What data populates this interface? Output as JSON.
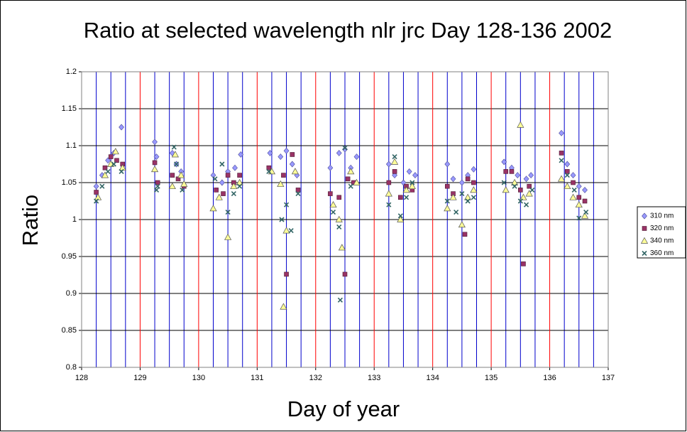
{
  "chart_data": {
    "type": "scatter",
    "title": "Ratio at selected wavelength nlr jrc Day 128-136 2002",
    "x_label": "Day of year",
    "y_label": "Ratio",
    "xlim": [
      128,
      137
    ],
    "xticks": [
      128,
      129,
      130,
      131,
      132,
      133,
      134,
      135,
      136,
      137
    ],
    "xminor": [
      128.25,
      128.5,
      128.75,
      129.25,
      129.5,
      129.75,
      130.25,
      130.5,
      130.75,
      131.25,
      131.5,
      131.75,
      132.25,
      132.5,
      132.75,
      133.25,
      133.5,
      133.75,
      134.25,
      134.5,
      134.75,
      135.25,
      135.5,
      135.75,
      136.25,
      136.5,
      136.75
    ],
    "ylim": [
      0.8,
      1.2
    ],
    "yticks": [
      0.8,
      0.85,
      0.9,
      0.95,
      1,
      1.05,
      1.1,
      1.15,
      1.2
    ],
    "grid": true,
    "grid_color": "#000000",
    "xmajor_color": "#ff0000",
    "xminor_color": "#0000cc",
    "legend": "right",
    "series": [
      {
        "name": "310 nm",
        "color": "#9999ff",
        "marker": "diamond",
        "x": [
          128.25,
          128.35,
          128.45,
          128.55,
          128.68,
          129.25,
          129.28,
          129.55,
          129.62,
          129.7,
          130.25,
          130.4,
          130.5,
          130.62,
          130.72,
          131.22,
          131.4,
          131.5,
          131.6,
          131.68,
          132.25,
          132.4,
          132.5,
          132.6,
          132.7,
          133.25,
          133.35,
          133.5,
          133.6,
          133.7,
          134.25,
          134.35,
          134.5,
          134.6,
          134.7,
          135.22,
          135.35,
          135.45,
          135.6,
          135.68,
          136.2,
          136.3,
          136.4,
          136.5,
          136.6
        ],
        "values": [
          1.045,
          1.06,
          1.08,
          1.09,
          1.125,
          1.105,
          1.085,
          1.09,
          1.075,
          1.065,
          1.06,
          1.05,
          1.065,
          1.07,
          1.088,
          1.09,
          1.085,
          1.093,
          1.075,
          1.06,
          1.07,
          1.09,
          1.095,
          1.07,
          1.085,
          1.075,
          1.06,
          1.05,
          1.065,
          1.06,
          1.075,
          1.055,
          1.05,
          1.06,
          1.068,
          1.078,
          1.07,
          1.06,
          1.055,
          1.06,
          1.117,
          1.075,
          1.06,
          1.045,
          1.04
        ]
      },
      {
        "name": "320 nm",
        "color": "#993366",
        "marker": "square",
        "x": [
          128.25,
          128.4,
          128.5,
          128.6,
          128.7,
          129.25,
          129.3,
          129.55,
          129.65,
          129.75,
          130.3,
          130.42,
          130.5,
          130.6,
          130.7,
          131.2,
          131.45,
          131.5,
          131.6,
          131.7,
          132.25,
          132.4,
          132.5,
          132.55,
          132.65,
          133.25,
          133.35,
          133.45,
          133.55,
          133.65,
          134.25,
          134.35,
          134.55,
          134.6,
          134.7,
          135.25,
          135.35,
          135.5,
          135.55,
          135.65,
          136.2,
          136.3,
          136.4,
          136.5,
          136.6
        ],
        "values": [
          1.037,
          1.07,
          1.085,
          1.08,
          1.075,
          1.077,
          1.05,
          1.06,
          1.055,
          1.045,
          1.04,
          1.035,
          1.06,
          1.05,
          1.06,
          1.07,
          1.06,
          0.926,
          1.088,
          1.04,
          1.035,
          1.03,
          0.926,
          1.055,
          1.05,
          1.05,
          1.065,
          1.03,
          1.045,
          1.04,
          1.045,
          1.035,
          0.98,
          1.055,
          1.05,
          1.065,
          1.065,
          1.04,
          0.94,
          1.045,
          1.09,
          1.065,
          1.05,
          1.03,
          1.025
        ]
      },
      {
        "name": "340 nm",
        "color": "#ffff99",
        "marker": "triangle",
        "x": [
          128.28,
          128.4,
          128.5,
          128.58,
          128.7,
          129.25,
          129.55,
          129.6,
          129.7,
          129.75,
          130.25,
          130.35,
          130.5,
          130.6,
          130.7,
          131.25,
          131.4,
          131.45,
          131.5,
          131.65,
          132.3,
          132.4,
          132.45,
          132.6,
          132.7,
          133.25,
          133.35,
          133.45,
          133.55,
          133.65,
          134.25,
          134.35,
          134.5,
          134.6,
          134.7,
          135.25,
          135.4,
          135.5,
          135.55,
          135.65,
          136.2,
          136.3,
          136.4,
          136.5,
          136.6
        ],
        "values": [
          1.03,
          1.06,
          1.075,
          1.092,
          1.07,
          1.068,
          1.045,
          1.088,
          1.06,
          1.048,
          1.015,
          1.03,
          0.976,
          1.045,
          1.05,
          1.065,
          1.048,
          0.882,
          0.985,
          1.065,
          1.02,
          1.0,
          0.962,
          1.065,
          1.05,
          1.035,
          1.078,
          1.0,
          1.04,
          1.045,
          1.015,
          1.03,
          0.993,
          1.03,
          1.04,
          1.04,
          1.05,
          1.128,
          1.03,
          1.035,
          1.055,
          1.045,
          1.03,
          1.02,
          1.005
        ]
      },
      {
        "name": "360 nm",
        "color": "#336666",
        "marker": "cross",
        "x": [
          128.25,
          128.35,
          128.45,
          128.55,
          128.68,
          129.28,
          129.3,
          129.58,
          129.62,
          129.72,
          130.28,
          130.4,
          130.5,
          130.6,
          130.7,
          131.2,
          131.42,
          131.5,
          131.58,
          131.7,
          132.3,
          132.4,
          132.42,
          132.5,
          132.6,
          133.25,
          133.35,
          133.45,
          133.55,
          133.65,
          134.25,
          134.4,
          134.5,
          134.6,
          134.7,
          135.22,
          135.4,
          135.5,
          135.6,
          135.7,
          136.2,
          136.3,
          136.42,
          136.5,
          136.62
        ],
        "values": [
          1.025,
          1.045,
          1.065,
          1.075,
          1.065,
          1.04,
          1.045,
          1.098,
          1.075,
          1.04,
          1.055,
          1.075,
          1.01,
          1.035,
          1.045,
          1.065,
          1.0,
          1.02,
          0.985,
          1.035,
          1.01,
          0.99,
          0.891,
          1.097,
          1.045,
          1.02,
          1.085,
          1.005,
          1.03,
          1.05,
          1.025,
          1.01,
          1.035,
          1.025,
          1.03,
          1.05,
          1.045,
          1.025,
          1.02,
          1.04,
          1.08,
          1.06,
          1.04,
          1.002,
          1.01
        ]
      }
    ]
  }
}
